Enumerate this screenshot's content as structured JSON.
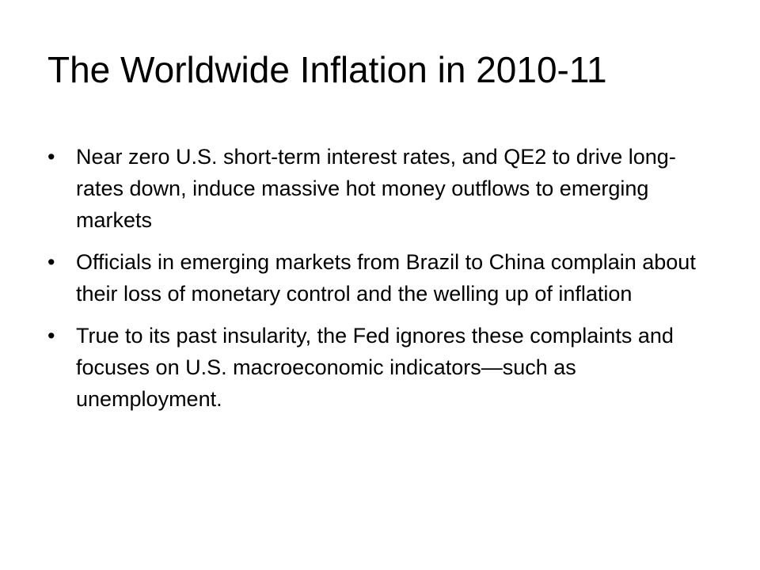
{
  "slide": {
    "title": "The Worldwide Inflation in 2010-11",
    "bullet_symbol": "•",
    "bullets": [
      {
        "text": "Near zero U.S. short-term interest rates, and QE2 to drive long-rates down, induce massive hot money outflows to emerging markets"
      },
      {
        "text": "Officials in emerging markets from Brazil to China complain about their loss of monetary control and the welling up of inflation"
      },
      {
        "text": "True to its past insularity, the Fed ignores these complaints and focuses on U.S. macroeconomic indicators—such as unemployment."
      }
    ]
  }
}
